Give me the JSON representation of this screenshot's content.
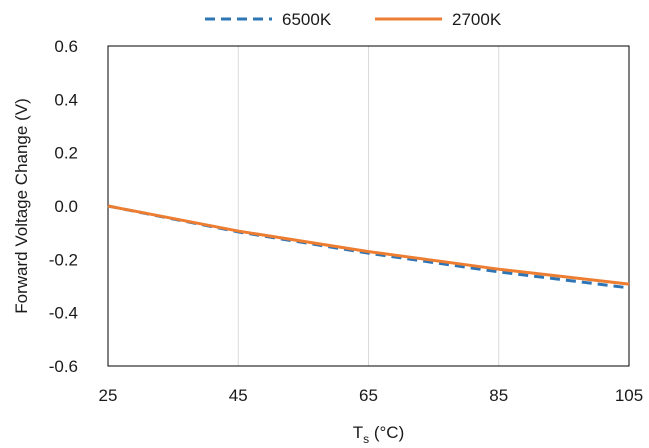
{
  "chart_data": {
    "type": "line",
    "xlabel": "T",
    "xlabel_subscript": "s",
    "xlabel_unit": " (°C)",
    "ylabel": "Forward Voltage Change (V)",
    "xlim": [
      25,
      105
    ],
    "ylim": [
      -0.6,
      0.6
    ],
    "x_ticks": [
      25,
      45,
      65,
      85,
      105
    ],
    "y_ticks": [
      0.6,
      0.4,
      0.2,
      0.0,
      -0.2,
      -0.4,
      -0.6
    ],
    "y_tick_labels": [
      "0.6",
      "0.4",
      "0.2",
      "0.0",
      "-0.2",
      "-0.4",
      "-0.6"
    ],
    "grid": "vertical",
    "legend_position": "top",
    "series": [
      {
        "name": "6500K",
        "color": "#2e75b6",
        "style": "dashed",
        "x": [
          25,
          45,
          65,
          85,
          105
        ],
        "y": [
          0.0,
          -0.097,
          -0.177,
          -0.247,
          -0.307
        ]
      },
      {
        "name": "2700K",
        "color": "#ed7d31",
        "style": "solid",
        "x": [
          25,
          45,
          65,
          85,
          105
        ],
        "y": [
          0.0,
          -0.094,
          -0.171,
          -0.237,
          -0.293
        ]
      }
    ]
  }
}
